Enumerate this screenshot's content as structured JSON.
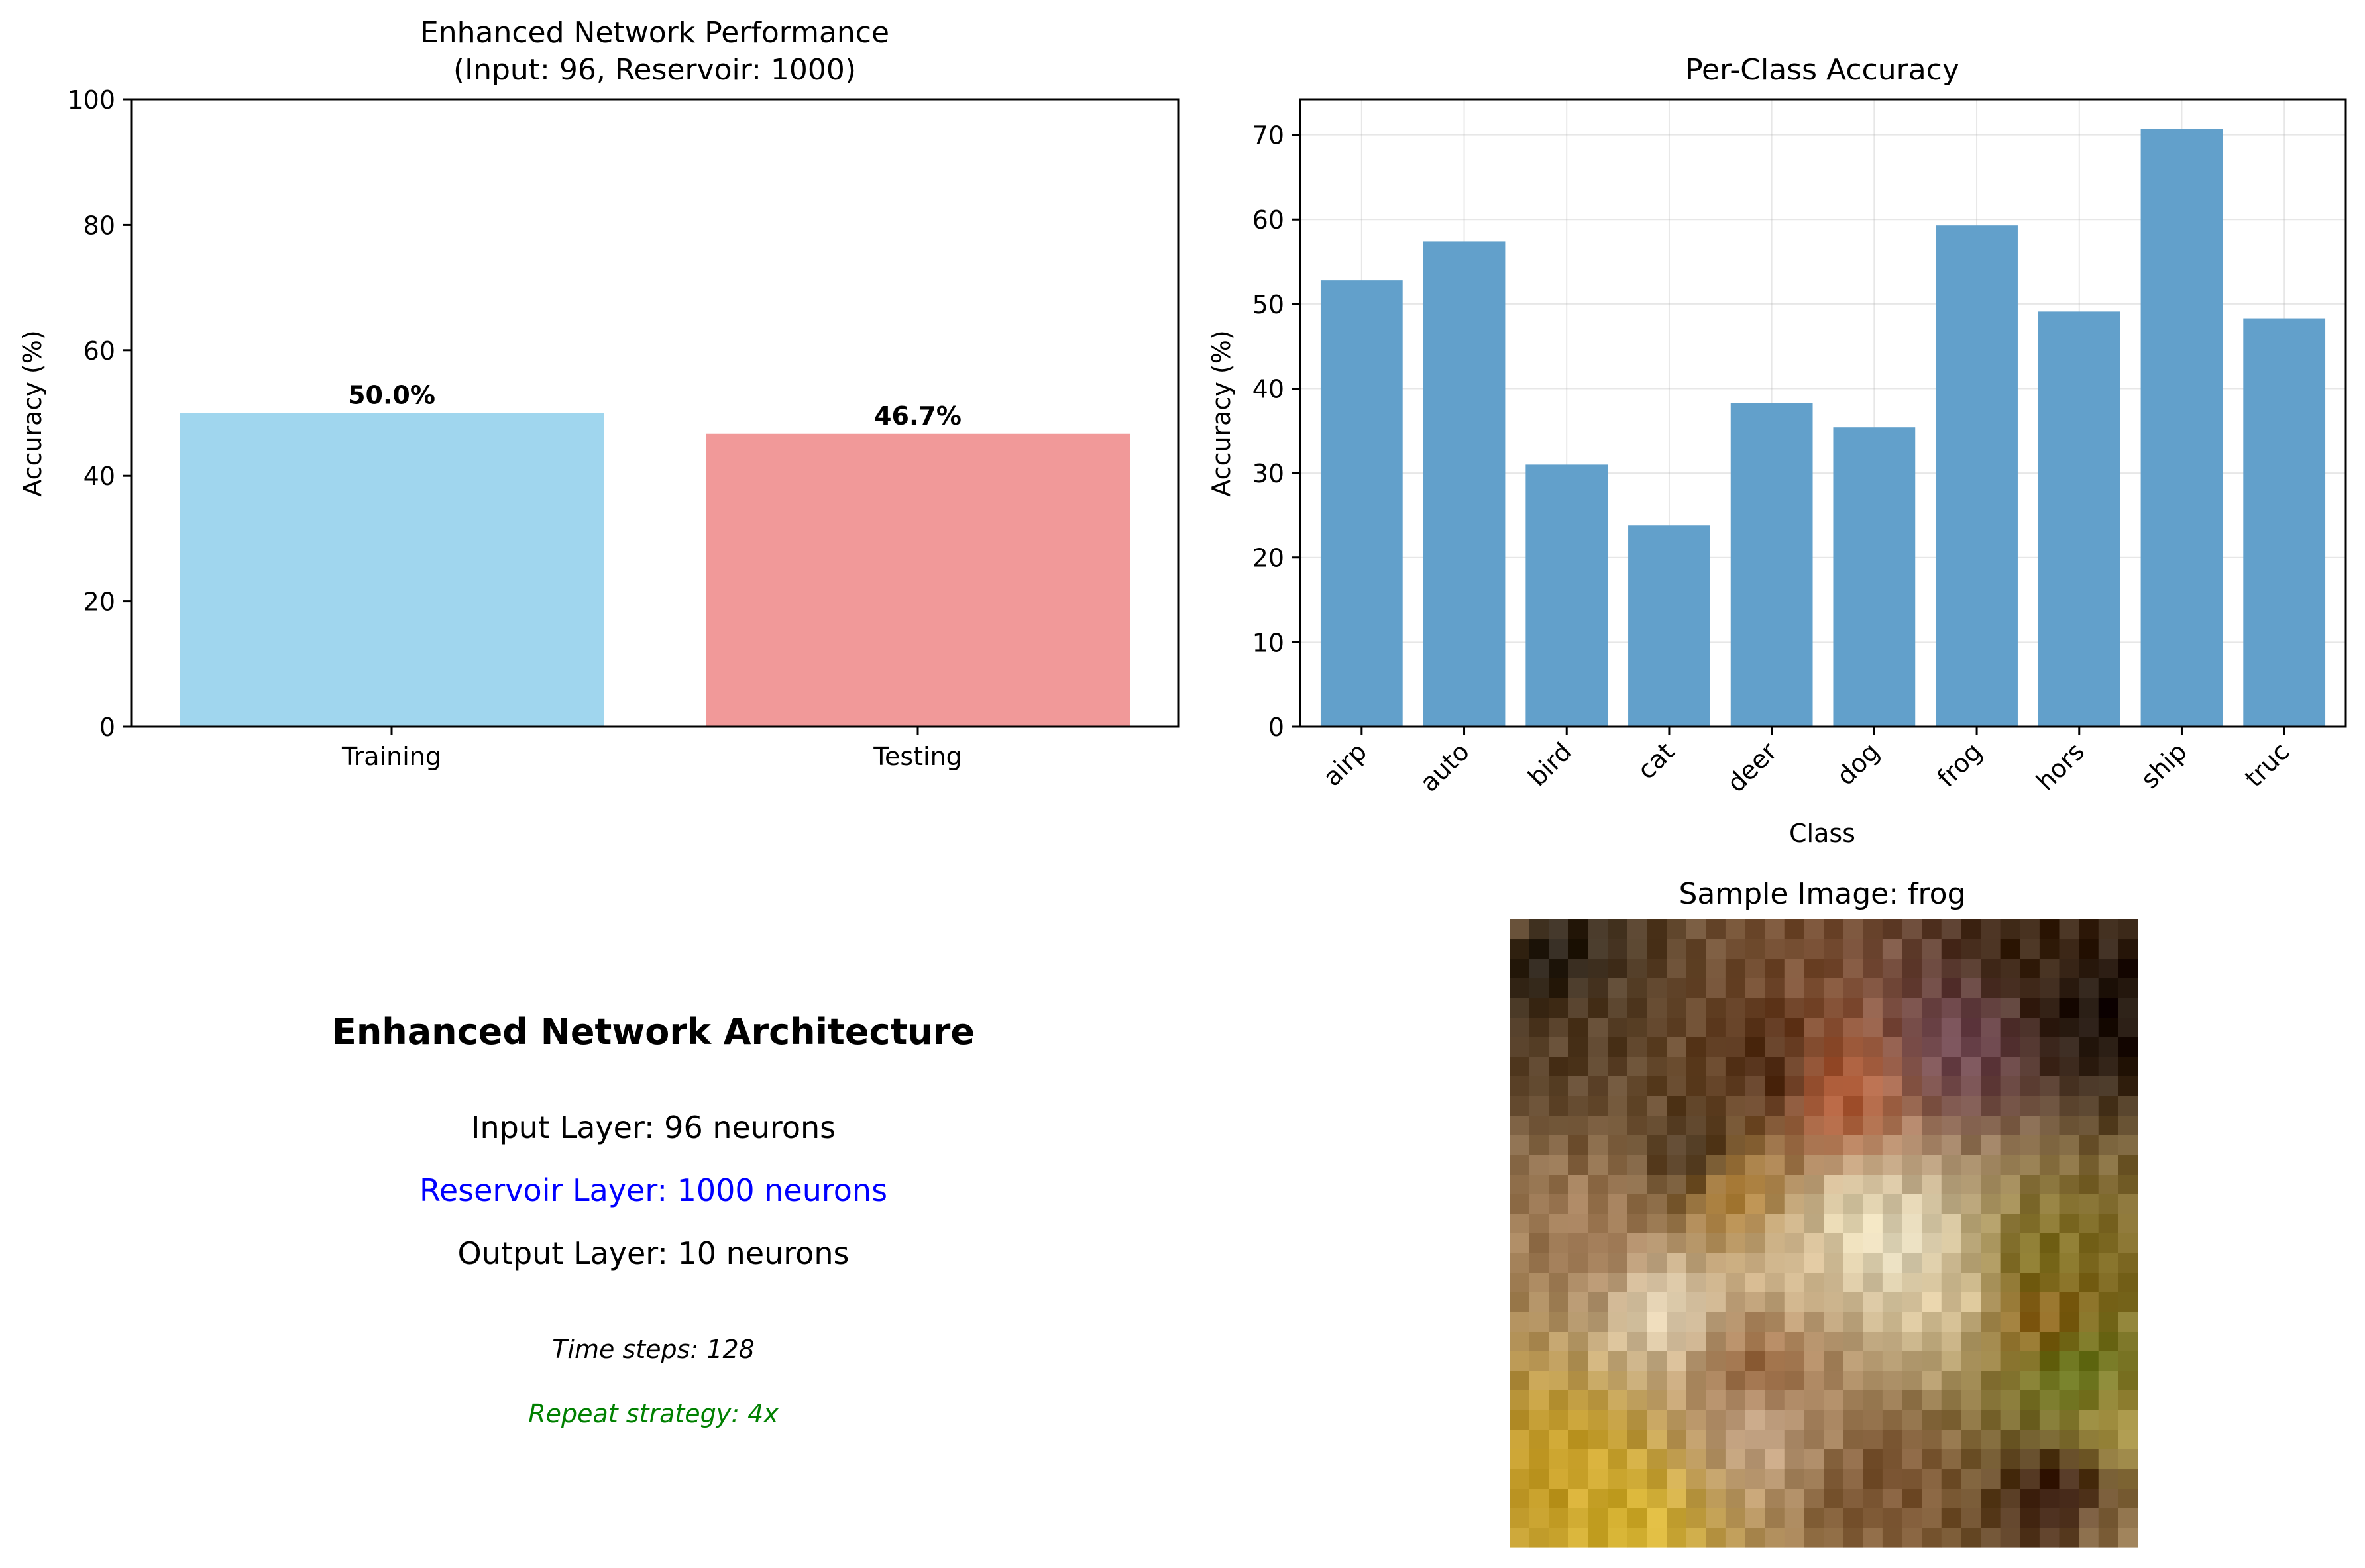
{
  "charts": {
    "performance": {
      "title_line1": "Enhanced Network Performance",
      "title_line2": "(Input: 96, Reservoir: 1000)",
      "ylabel": "Accuracy (%)"
    },
    "per_class": {
      "title": "Per-Class Accuracy",
      "xlabel": "Class",
      "ylabel": "Accuracy (%)"
    }
  },
  "chart_data": [
    {
      "type": "bar",
      "title": "Enhanced Network Performance\n(Input: 96, Reservoir: 1000)",
      "xlabel": "",
      "ylabel": "Accuracy (%)",
      "categories": [
        "Training",
        "Testing"
      ],
      "values": [
        50.0,
        46.7
      ],
      "data_labels": [
        "50.0%",
        "46.7%"
      ],
      "colors": [
        "#a0d6ee",
        "#f19999"
      ],
      "ylim": [
        0,
        100
      ],
      "yticks": [
        0,
        20,
        40,
        60,
        80,
        100
      ],
      "grid": false
    },
    {
      "type": "bar",
      "title": "Per-Class Accuracy",
      "xlabel": "Class",
      "ylabel": "Accuracy (%)",
      "categories": [
        "airp",
        "auto",
        "bird",
        "cat",
        "deer",
        "dog",
        "frog",
        "hors",
        "ship",
        "truc"
      ],
      "values": [
        52.8,
        57.4,
        31.0,
        23.8,
        38.3,
        35.4,
        59.3,
        49.1,
        70.7,
        48.3
      ],
      "color": "#62a0cb",
      "ylim": [
        0,
        74.2
      ],
      "yticks": [
        0,
        10,
        20,
        30,
        40,
        50,
        60,
        70
      ],
      "grid": true
    }
  ],
  "architecture": {
    "title": "Enhanced Network Architecture",
    "input_layer": "Input Layer: 96 neurons",
    "reservoir_layer": "Reservoir Layer: 1000 neurons",
    "output_layer": "Output Layer: 10 neurons",
    "time_steps": "Time steps: 128",
    "repeat_strategy": "Repeat strategy: 4x",
    "colors": {
      "reservoir": "#0000ff",
      "repeat": "#008000"
    }
  },
  "sample": {
    "title": "Sample Image: frog"
  }
}
